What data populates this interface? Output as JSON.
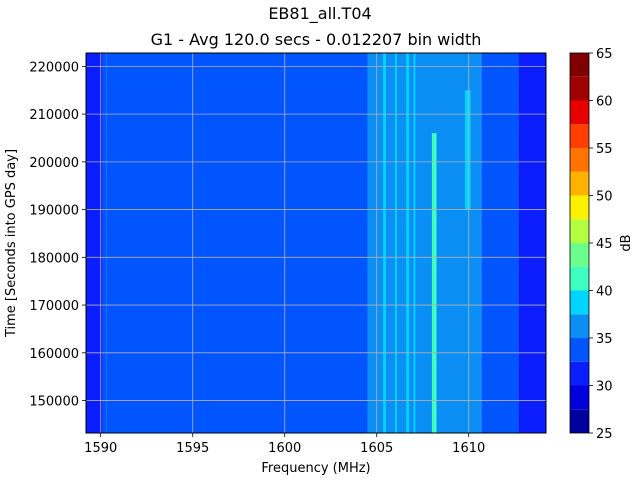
{
  "chart_data": {
    "type": "heatmap",
    "title": "EB81_all.T04",
    "subtitle": "G1 - Avg 120.0 secs - 0.012207 bin width",
    "xlabel": "Frequency (MHz)",
    "ylabel": "Time [Seconds into GPS day]",
    "colorbar_label": "dB",
    "xlim": [
      1589.2,
      1614.2
    ],
    "ylim": [
      143200,
      222800
    ],
    "x_ticks": [
      "1590",
      "1595",
      "1600",
      "1605",
      "1610"
    ],
    "x_tick_values": [
      1590,
      1595,
      1600,
      1605,
      1610
    ],
    "y_ticks": [
      "150000",
      "160000",
      "170000",
      "180000",
      "190000",
      "200000",
      "210000",
      "220000"
    ],
    "y_tick_values": [
      150000,
      160000,
      170000,
      180000,
      190000,
      200000,
      210000,
      220000
    ],
    "grid": true,
    "colorbar": {
      "levels": [
        25,
        27.5,
        30,
        32.5,
        35,
        37.5,
        40,
        42.5,
        45,
        47.5,
        50,
        52.5,
        55,
        57.5,
        60,
        62.5,
        65
      ],
      "tick_labels": [
        "25",
        "30",
        "35",
        "40",
        "45",
        "50",
        "55",
        "60",
        "65"
      ],
      "tick_values": [
        25,
        30,
        35,
        40,
        45,
        50,
        55,
        60,
        65
      ],
      "colors": [
        "#00009f",
        "#0000dd",
        "#0a1eff",
        "#0055ff",
        "#0b8ff5",
        "#00d5ff",
        "#3effbf",
        "#6bff8c",
        "#b5ff42",
        "#fbf100",
        "#ffb300",
        "#ff7400",
        "#ff3f00",
        "#e60000",
        "#9f0000",
        "#800000"
      ]
    },
    "bands": [
      {
        "x0": 1589.2,
        "x1": 1590.1,
        "db": 31
      },
      {
        "x0": 1590.1,
        "x1": 1590.3,
        "db": 33
      },
      {
        "x0": 1590.3,
        "x1": 1604.5,
        "db": 33.5
      },
      {
        "x0": 1604.5,
        "x1": 1610.7,
        "db": 36
      },
      {
        "x0": 1610.7,
        "x1": 1612.7,
        "db": 34
      },
      {
        "x0": 1612.7,
        "x1": 1614.2,
        "db": 31
      }
    ],
    "lines": [
      {
        "x0": 1604.7,
        "x1": 1605.0,
        "y0": 143200,
        "y1": 174000,
        "db": 37
      },
      {
        "x0": 1605.35,
        "x1": 1605.5,
        "y0": 143200,
        "y1": 222800,
        "db": 38.5
      },
      {
        "x0": 1606.0,
        "x1": 1606.1,
        "y0": 143200,
        "y1": 222800,
        "db": 37.5
      },
      {
        "x0": 1606.6,
        "x1": 1606.75,
        "y0": 143200,
        "y1": 222800,
        "db": 39
      },
      {
        "x0": 1607.0,
        "x1": 1607.1,
        "y0": 143200,
        "y1": 222800,
        "db": 37.5
      },
      {
        "x0": 1608.0,
        "x1": 1608.25,
        "y0": 143200,
        "y1": 206000,
        "db": 40
      },
      {
        "x0": 1609.8,
        "x1": 1610.1,
        "y0": 190000,
        "y1": 215000,
        "db": 37.5
      }
    ]
  }
}
